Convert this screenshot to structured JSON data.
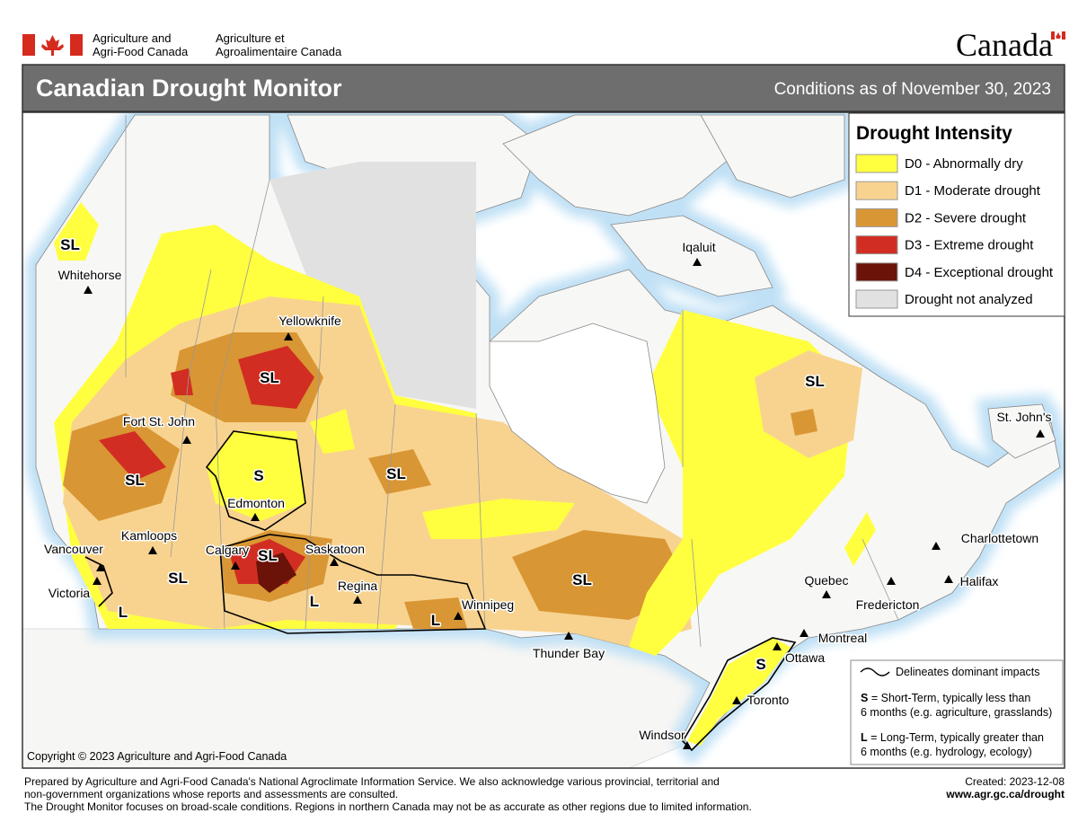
{
  "header": {
    "department_en": [
      "Agriculture and",
      "Agri-Food Canada"
    ],
    "department_fr": [
      "Agriculture et",
      "Agroalimentaire Canada"
    ],
    "wordmark": "Canada"
  },
  "title": "Canadian Drought Monitor",
  "subtitle": "Conditions as of November 30, 2023",
  "legend": {
    "title": "Drought Intensity",
    "items": [
      {
        "label": "D0 - Abnormally dry",
        "color": "#ffff40"
      },
      {
        "label": "D1 - Moderate drought",
        "color": "#f8d38f"
      },
      {
        "label": "D2 - Severe drought",
        "color": "#d99634"
      },
      {
        "label": "D3 - Extreme drought",
        "color": "#d22d22"
      },
      {
        "label": "D4 - Exceptional drought",
        "color": "#6b1209"
      },
      {
        "label": "Drought not analyzed",
        "color": "#e1e1e1"
      }
    ]
  },
  "places": [
    "Whitehorse",
    "Yellowknife",
    "Iqaluit",
    "Fort St. John",
    "Edmonton",
    "Kamloops",
    "Calgary",
    "Saskatoon",
    "Regina",
    "Winnipeg",
    "Thunder Bay",
    "Vancouver",
    "Victoria",
    "Quebec",
    "Montreal",
    "Ottawa",
    "Toronto",
    "Windsor",
    "Fredericton",
    "Halifax",
    "Charlottetown",
    "St. John's"
  ],
  "impact_labels": [
    "SL",
    "SL",
    "SL",
    "S",
    "SL",
    "SL",
    "SL",
    "L",
    "L",
    "L",
    "SL",
    "SL",
    "S"
  ],
  "impact_legend": {
    "line": "Delineates dominant impacts",
    "short_key": "S",
    "short_text": [
      "= Short-Term, typically less than",
      "6 months (e.g. agriculture, grasslands)"
    ],
    "long_key": "L",
    "long_text": [
      "= Long-Term, typically greater  than",
      "6 months (e.g. hydrology, ecology)"
    ]
  },
  "copyright": "Copyright © 2023 Agriculture and Agri-Food Canada",
  "footer": {
    "lines": [
      "Prepared by Agriculture and Agri-Food Canada's National Agroclimate Information Service.  We also acknowledge various provincial, territorial and",
      "non-government organizations whose reports and assessments are consulted.",
      "The Drought Monitor focuses on broad-scale conditions.  Regions in northern Canada may not be as accurate as other regions due to limited information."
    ],
    "created": "Created: 2023-12-08",
    "url": "www.agr.gc.ca/drought"
  }
}
